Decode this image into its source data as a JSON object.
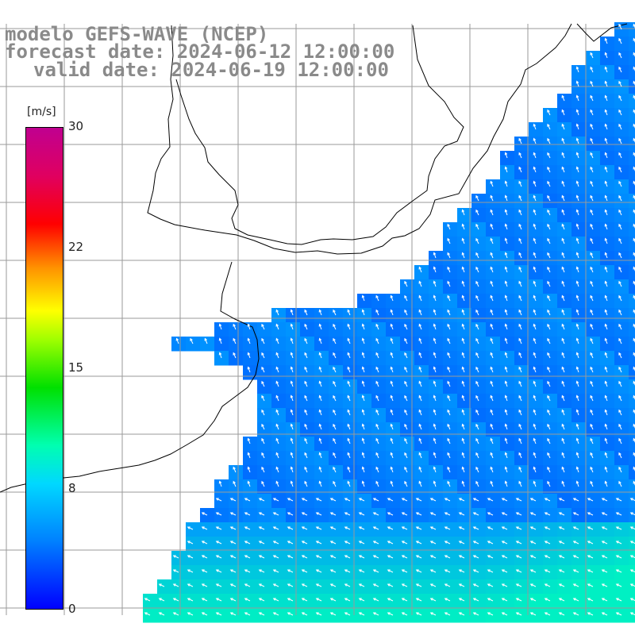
{
  "title": {
    "model": "modelo GEFS-WAVE (NCEP)",
    "forecast_date": "forecast date: 2024-06-12 12:00:00",
    "valid_date": "valid date: 2024-06-19 12:00:00"
  },
  "colorbar": {
    "unit": "[m/s]",
    "ticks": [
      "30",
      "22",
      "15",
      "8",
      "0"
    ],
    "tick_values": [
      30,
      22,
      15,
      8,
      0
    ],
    "min": 0,
    "max": 30,
    "colors": [
      "#0000ff",
      "#0080ff",
      "#00d8ff",
      "#00ffb0",
      "#00e000",
      "#a0ff00",
      "#ffff00",
      "#ff9000",
      "#ff0000",
      "#e00060",
      "#c00090"
    ]
  },
  "map": {
    "field": "wind speed with direction arrows",
    "land_color": "#ffffff",
    "grid": true,
    "grid_color": "#9a9a9a",
    "coast_color": "#000000",
    "arrow_color": "#ffffff",
    "typical_speed_mps": 3,
    "prevailing_direction": "north / north-west"
  }
}
